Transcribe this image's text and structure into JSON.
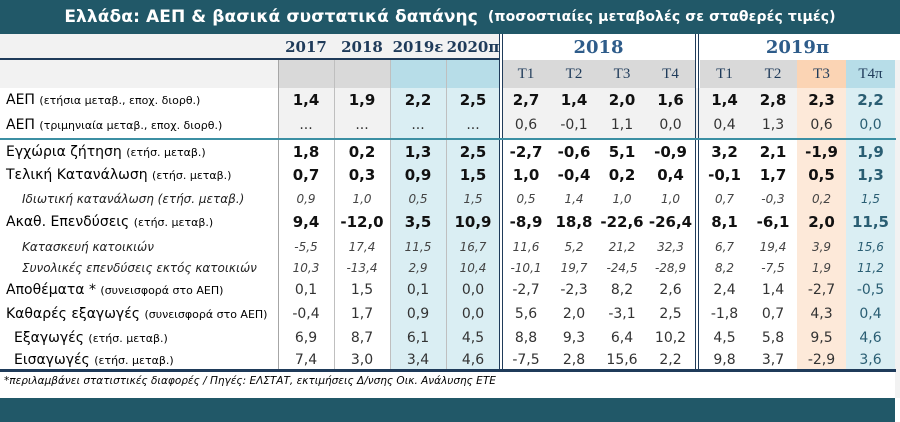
{
  "title": {
    "main": "Ελλάδα: ΑΕΠ & βασικά συστατικά δαπάνης",
    "subtitle": "(ποσοστιαίες μεταβολές σε σταθερές τιμές)"
  },
  "columns": {
    "annual": [
      "2017",
      "2018",
      "2019ε",
      "2020π"
    ],
    "group_2018": "2018",
    "group_2019": "2019π",
    "quarters_2018": [
      "T1",
      "T2",
      "T3",
      "T4"
    ],
    "quarters_2019": [
      "T1",
      "T2",
      "T3",
      "T4π"
    ]
  },
  "colors": {
    "title_bg": "#215868",
    "header_gray": "#d9d9d9",
    "annual_forecast_bg": "#b7dde8",
    "annual_forecast_cell_bg": "#daeef3",
    "t3_highlight_header": "#fbd4b4",
    "t3_highlight_cell": "#fde9d9",
    "t4_highlight_header": "#b7dde8",
    "t4_highlight_cell": "#daeef3"
  },
  "rows": [
    {
      "label": "ΑΕΠ",
      "note": "(ετήσια μεταβ., εποχ. διορθ.)",
      "style": "bold",
      "annual": [
        "1,4",
        "1,9",
        "2,2",
        "2,5"
      ],
      "q2018": [
        "2,7",
        "1,4",
        "2,0",
        "1,6"
      ],
      "q2019": [
        "1,4",
        "2,8",
        "2,3",
        "2,2"
      ]
    },
    {
      "label": "ΑΕΠ",
      "note": "(τριμηνιαία μεταβ., εποχ. διορθ.)",
      "style": "normal",
      "annual": [
        "...",
        "...",
        "...",
        "..."
      ],
      "q2018": [
        "0,6",
        "-0,1",
        "1,1",
        "0,0"
      ],
      "q2019": [
        "0,4",
        "1,3",
        "0,6",
        "0,0"
      ]
    },
    {
      "label": "Εγχώρια ζήτηση",
      "note": "(ετήσ. μεταβ.)",
      "style": "bold",
      "annual": [
        "1,8",
        "0,2",
        "1,3",
        "2,5"
      ],
      "q2018": [
        "-2,7",
        "-0,6",
        "5,1",
        "-0,9"
      ],
      "q2019": [
        "3,2",
        "2,1",
        "-1,9",
        "1,9"
      ]
    },
    {
      "label": "Τελική Κατανάλωση",
      "note": "(ετήσ. μεταβ.)",
      "style": "bold",
      "annual": [
        "0,7",
        "0,3",
        "0,9",
        "1,5"
      ],
      "q2018": [
        "1,0",
        "-0,4",
        "0,2",
        "0,4"
      ],
      "q2019": [
        "-0,1",
        "1,7",
        "0,5",
        "1,3"
      ]
    },
    {
      "label": "Ιδιωτική κατανάλωση (ετήσ. μεταβ.)",
      "note": "",
      "style": "italic",
      "annual": [
        "0,9",
        "1,0",
        "0,5",
        "1,5"
      ],
      "q2018": [
        "0,5",
        "1,4",
        "1,0",
        "1,0"
      ],
      "q2019": [
        "0,7",
        "-0,3",
        "0,2",
        "1,5"
      ]
    },
    {
      "label": "Ακαθ. Επενδύσεις",
      "note": "(ετήσ. μεταβ.)",
      "style": "bold",
      "annual": [
        "9,4",
        "-12,0",
        "3,5",
        "10,9"
      ],
      "q2018": [
        "-8,9",
        "18,8",
        "-22,6",
        "-26,4"
      ],
      "q2019": [
        "8,1",
        "-6,1",
        "2,0",
        "11,5"
      ]
    },
    {
      "label": "Κατασκευή κατοικιών",
      "note": "",
      "style": "italic",
      "annual": [
        "-5,5",
        "17,4",
        "11,5",
        "16,7"
      ],
      "q2018": [
        "11,6",
        "5,2",
        "21,2",
        "32,3"
      ],
      "q2019": [
        "6,7",
        "19,4",
        "3,9",
        "15,6"
      ]
    },
    {
      "label": "Συνολικές επενδύσεις εκτός κατοικιών",
      "note": "",
      "style": "italic",
      "annual": [
        "10,3",
        "-13,4",
        "2,9",
        "10,4"
      ],
      "q2018": [
        "-10,1",
        "19,7",
        "-24,5",
        "-28,9"
      ],
      "q2019": [
        "8,2",
        "-7,5",
        "1,9",
        "11,2"
      ]
    },
    {
      "label": "Αποθέματα *",
      "note": "(συνεισφορά στο ΑΕΠ)",
      "style": "normal",
      "annual": [
        "0,1",
        "1,5",
        "0,1",
        "0,0"
      ],
      "q2018": [
        "-2,7",
        "-2,3",
        "8,2",
        "2,6"
      ],
      "q2019": [
        "2,4",
        "1,4",
        "-2,7",
        "-0,5"
      ]
    },
    {
      "label": "Καθαρές εξαγωγές",
      "note": "(συνεισφορά στο ΑΕΠ)",
      "style": "normal",
      "annual": [
        "-0,4",
        "1,7",
        "0,9",
        "0,0"
      ],
      "q2018": [
        "5,6",
        "2,0",
        "-3,1",
        "2,5"
      ],
      "q2019": [
        "-1,8",
        "0,7",
        "4,3",
        "0,4"
      ]
    },
    {
      "label": "Εξαγωγές",
      "note": "(ετήσ. μεταβ.)",
      "style": "normal-indent",
      "annual": [
        "6,9",
        "8,7",
        "6,1",
        "4,5"
      ],
      "q2018": [
        "8,8",
        "9,3",
        "6,4",
        "10,2"
      ],
      "q2019": [
        "4,5",
        "5,8",
        "9,5",
        "4,6"
      ]
    },
    {
      "label": "Εισαγωγές",
      "note": "(ετήσ. μεταβ.)",
      "style": "normal-indent",
      "annual": [
        "7,4",
        "3,0",
        "3,4",
        "4,6"
      ],
      "q2018": [
        "-7,5",
        "2,8",
        "15,6",
        "2,2"
      ],
      "q2019": [
        "9,8",
        "3,7",
        "-2,9",
        "3,6"
      ]
    }
  ],
  "footnote": "*περιλαμβάνει στατιστικές διαφορές  / Πηγές: ΕΛΣΤΑΤ, εκτιμήσεις Δ/νσης Οικ. Ανάλυσης ΕΤΕ"
}
